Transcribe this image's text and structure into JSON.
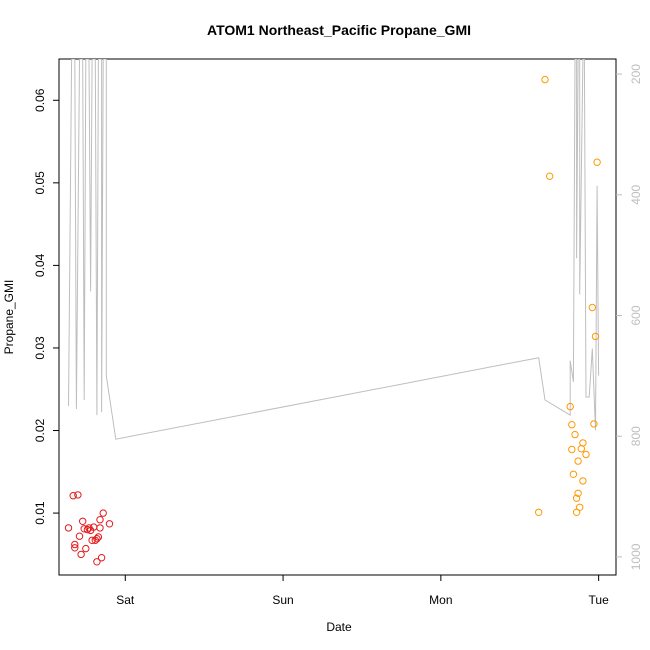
{
  "chart_data": {
    "type": "scatter",
    "title": "ATOM1 Northeast_Pacific Propane_GMI",
    "xlabel": "Date",
    "ylabel": "Propane_GMI",
    "x_tick_labels": [
      "Sat",
      "Sun",
      "Mon",
      "Tue"
    ],
    "x_range": [
      -0.42,
      3.11
    ],
    "y_left_ticks": [
      0.01,
      0.02,
      0.03,
      0.04,
      0.05,
      0.06
    ],
    "y_left_tick_labels": [
      "0.01",
      "0.02",
      "0.03",
      "0.04",
      "0.05",
      "0.06"
    ],
    "y_left_range": [
      0.0025,
      0.065
    ],
    "y_right_ticks": [
      200,
      400,
      600,
      800,
      1000
    ],
    "y_right_tick_labels": [
      "200",
      "400",
      "600",
      "800",
      "1000"
    ],
    "y_right_range": [
      1030,
      175
    ],
    "grid": false,
    "colors": {
      "series_1": "#e41a1c",
      "series_2": "#ff9900",
      "pressure_line": "#bebebe"
    },
    "series": [
      {
        "color": "#e41a1c",
        "marker": "open-circle",
        "points": [
          [
            -0.36,
            0.0082
          ],
          [
            -0.33,
            0.0121
          ],
          [
            -0.32,
            0.0062
          ],
          [
            -0.32,
            0.0058
          ],
          [
            -0.3,
            0.0122
          ],
          [
            -0.29,
            0.0072
          ],
          [
            -0.28,
            0.005
          ],
          [
            -0.27,
            0.009
          ],
          [
            -0.26,
            0.0081
          ],
          [
            -0.25,
            0.0057
          ],
          [
            -0.24,
            0.008
          ],
          [
            -0.23,
            0.0082
          ],
          [
            -0.22,
            0.0079
          ],
          [
            -0.21,
            0.0067
          ],
          [
            -0.2,
            0.0083
          ],
          [
            -0.19,
            0.0067
          ],
          [
            -0.18,
            0.0069
          ],
          [
            -0.18,
            0.0041
          ],
          [
            -0.17,
            0.0071
          ],
          [
            -0.16,
            0.0082
          ],
          [
            -0.16,
            0.0092
          ],
          [
            -0.15,
            0.0046
          ],
          [
            -0.14,
            0.01
          ],
          [
            -0.1,
            0.0087
          ]
        ]
      },
      {
        "color": "#ff9900",
        "marker": "open-circle",
        "points": [
          [
            2.62,
            0.0101
          ],
          [
            2.66,
            0.0625
          ],
          [
            2.69,
            0.0508
          ],
          [
            2.82,
            0.0229
          ],
          [
            2.83,
            0.0177
          ],
          [
            2.83,
            0.0207
          ],
          [
            2.84,
            0.0147
          ],
          [
            2.85,
            0.0195
          ],
          [
            2.86,
            0.0101
          ],
          [
            2.86,
            0.0118
          ],
          [
            2.87,
            0.0124
          ],
          [
            2.87,
            0.0163
          ],
          [
            2.88,
            0.0107
          ],
          [
            2.89,
            0.0178
          ],
          [
            2.9,
            0.0185
          ],
          [
            2.9,
            0.0139
          ],
          [
            2.92,
            0.0171
          ],
          [
            2.96,
            0.0349
          ],
          [
            2.97,
            0.0208
          ],
          [
            2.98,
            0.0314
          ],
          [
            2.99,
            0.0525
          ]
        ]
      }
    ],
    "pressure_line": {
      "color": "#bebebe",
      "points": [
        [
          -0.36,
          750
        ],
        [
          -0.34,
          175
        ],
        [
          -0.32,
          175
        ],
        [
          -0.31,
          755
        ],
        [
          -0.29,
          175
        ],
        [
          -0.27,
          175
        ],
        [
          -0.26,
          740
        ],
        [
          -0.25,
          175
        ],
        [
          -0.23,
          175
        ],
        [
          -0.22,
          560
        ],
        [
          -0.21,
          175
        ],
        [
          -0.19,
          175
        ],
        [
          -0.18,
          765
        ],
        [
          -0.17,
          175
        ],
        [
          -0.15,
          175
        ],
        [
          -0.15,
          760
        ],
        [
          -0.14,
          175
        ],
        [
          -0.12,
          175
        ],
        [
          -0.12,
          700
        ],
        [
          -0.06,
          805
        ],
        [
          2.62,
          670
        ],
        [
          2.66,
          740
        ],
        [
          2.82,
          765
        ],
        [
          2.82,
          675
        ],
        [
          2.84,
          710
        ],
        [
          2.85,
          175
        ],
        [
          2.86,
          175
        ],
        [
          2.86,
          505
        ],
        [
          2.87,
          175
        ],
        [
          2.88,
          175
        ],
        [
          2.88,
          565
        ],
        [
          2.9,
          175
        ],
        [
          2.91,
          175
        ],
        [
          2.92,
          735
        ],
        [
          2.94,
          735
        ],
        [
          2.96,
          655
        ],
        [
          2.98,
          790
        ],
        [
          2.99,
          385
        ],
        [
          3.0,
          700
        ]
      ]
    }
  }
}
